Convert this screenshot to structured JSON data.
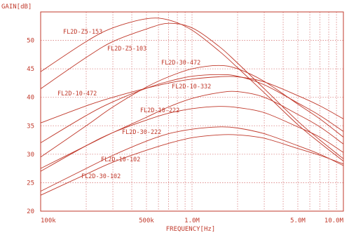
{
  "chart_data": {
    "type": "line",
    "ylabel": "GAIN[dB]",
    "xlabel": "FREQUENCY[Hz]",
    "xscale": "log",
    "xlim": [
      100000,
      10000000
    ],
    "ylim": [
      20,
      55
    ],
    "x_tick_values": [
      100000,
      500000,
      1000000,
      5000000,
      10000000
    ],
    "x_tick_labels": [
      "100k",
      "500k",
      "1.0M",
      "5.0M",
      "10.0M"
    ],
    "y_ticks": [
      20,
      25,
      30,
      35,
      40,
      45,
      50
    ],
    "grid": true,
    "x": [
      100000,
      200000,
      300000,
      500000,
      700000,
      1000000,
      1500000,
      2000000,
      3000000,
      5000000,
      7000000,
      10000000
    ],
    "series": [
      {
        "name": "FL2D-Z5-153",
        "values": [
          44.5,
          49.8,
          52.2,
          53.8,
          53.6,
          51.8,
          48.2,
          45.2,
          40.8,
          35.2,
          32.0,
          28.8
        ]
      },
      {
        "name": "FL2D-Z5-103",
        "values": [
          41.5,
          47.0,
          49.8,
          52.0,
          53.0,
          52.2,
          49.0,
          46.0,
          41.5,
          35.8,
          32.5,
          29.2
        ]
      },
      {
        "name": "FL2D-30-472",
        "values": [
          29.5,
          35.0,
          38.3,
          41.8,
          43.6,
          45.0,
          45.6,
          45.0,
          42.8,
          38.8,
          36.2,
          33.0
        ]
      },
      {
        "name": "FL2D-10-332",
        "values": [
          32.0,
          36.8,
          39.2,
          41.6,
          42.8,
          43.7,
          44.0,
          43.7,
          42.2,
          39.0,
          36.8,
          34.0
        ]
      },
      {
        "name": "FL2D-10-472",
        "values": [
          35.5,
          38.5,
          40.0,
          41.6,
          42.5,
          43.2,
          43.6,
          43.6,
          42.7,
          40.3,
          38.5,
          36.2
        ]
      },
      {
        "name": "FL2D-10-222",
        "values": [
          27.0,
          31.5,
          33.8,
          36.0,
          37.2,
          38.0,
          38.4,
          38.2,
          37.3,
          34.8,
          33.0,
          30.3
        ]
      },
      {
        "name": "FL2D-30-222",
        "values": [
          27.5,
          31.5,
          33.8,
          36.5,
          38.3,
          39.8,
          40.8,
          41.0,
          40.0,
          37.0,
          34.8,
          31.8
        ]
      },
      {
        "name": "FL2D-10-102",
        "values": [
          22.8,
          26.5,
          28.6,
          30.7,
          31.9,
          32.9,
          33.4,
          33.4,
          32.8,
          31.0,
          29.8,
          28.3
        ]
      },
      {
        "name": "FL2D-30-102",
        "values": [
          23.5,
          27.5,
          29.8,
          32.3,
          33.6,
          34.4,
          34.8,
          34.6,
          33.6,
          31.5,
          30.0,
          28.0
        ]
      }
    ]
  }
}
